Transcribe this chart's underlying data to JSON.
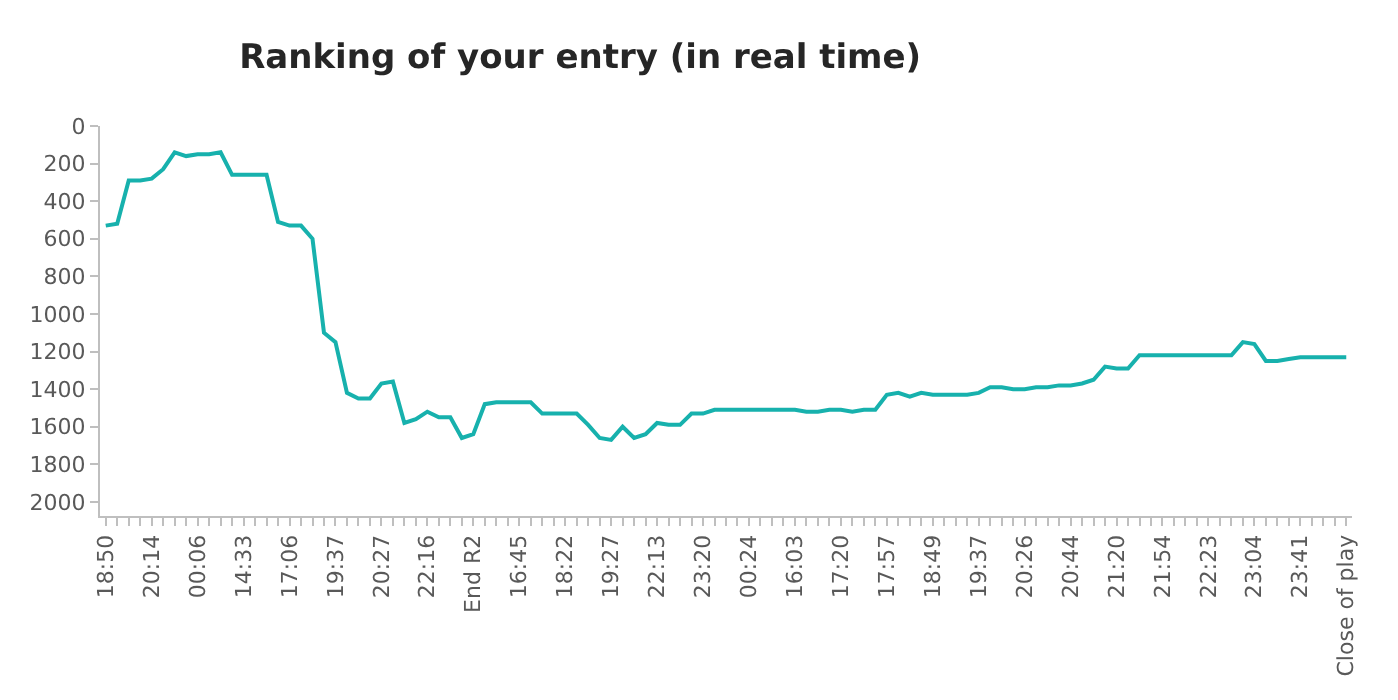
{
  "chart_data": {
    "type": "line",
    "title": "Ranking of your entry (in real time)",
    "categories": [
      "18:50",
      null,
      null,
      null,
      "20:14",
      null,
      null,
      null,
      "00:06",
      null,
      null,
      null,
      "14:33",
      null,
      null,
      null,
      "17:06",
      null,
      null,
      null,
      "19:37",
      null,
      null,
      null,
      "20:27",
      null,
      null,
      null,
      "22:16",
      null,
      null,
      null,
      "End R2",
      null,
      null,
      null,
      "16:45",
      null,
      null,
      null,
      "18:22",
      null,
      null,
      null,
      "19:27",
      null,
      null,
      null,
      "22:13",
      null,
      null,
      null,
      "23:20",
      null,
      null,
      null,
      "00:24",
      null,
      null,
      null,
      "16:03",
      null,
      null,
      null,
      "17:20",
      null,
      null,
      null,
      "17:57",
      null,
      null,
      null,
      "18:49",
      null,
      null,
      null,
      "19:37",
      null,
      null,
      null,
      "20:26",
      null,
      null,
      null,
      "20:44",
      null,
      null,
      null,
      "21:20",
      null,
      null,
      null,
      "21:54",
      null,
      null,
      null,
      "22:23",
      null,
      null,
      null,
      "23:04",
      null,
      null,
      null,
      "23:41",
      null,
      null,
      null,
      "Close of play"
    ],
    "series": [
      {
        "color": "#17b1ad",
        "values": [
          530,
          520,
          290,
          290,
          280,
          230,
          140,
          160,
          150,
          150,
          140,
          260,
          260,
          260,
          260,
          510,
          530,
          530,
          600,
          1100,
          1150,
          1420,
          1450,
          1450,
          1370,
          1360,
          1580,
          1560,
          1520,
          1550,
          1550,
          1660,
          1640,
          1480,
          1470,
          1470,
          1470,
          1470,
          1530,
          1530,
          1530,
          1530,
          1590,
          1660,
          1670,
          1600,
          1660,
          1640,
          1580,
          1590,
          1590,
          1530,
          1530,
          1510,
          1510,
          1510,
          1510,
          1510,
          1510,
          1510,
          1510,
          1520,
          1520,
          1510,
          1510,
          1520,
          1510,
          1510,
          1430,
          1420,
          1440,
          1420,
          1430,
          1430,
          1430,
          1430,
          1420,
          1390,
          1390,
          1400,
          1400,
          1390,
          1390,
          1380,
          1380,
          1370,
          1350,
          1280,
          1290,
          1290,
          1220,
          1220,
          1220,
          1220,
          1220,
          1220,
          1220,
          1220,
          1220,
          1150,
          1160,
          1250,
          1250,
          1240,
          1230,
          1230,
          1230,
          1230,
          1230
        ]
      }
    ],
    "ylim": [
      2075,
      0
    ],
    "yticks": [
      0,
      200,
      400,
      600,
      800,
      1000,
      1200,
      1400,
      1600,
      1800,
      2000
    ],
    "marker": "none",
    "line_style": "solid"
  }
}
